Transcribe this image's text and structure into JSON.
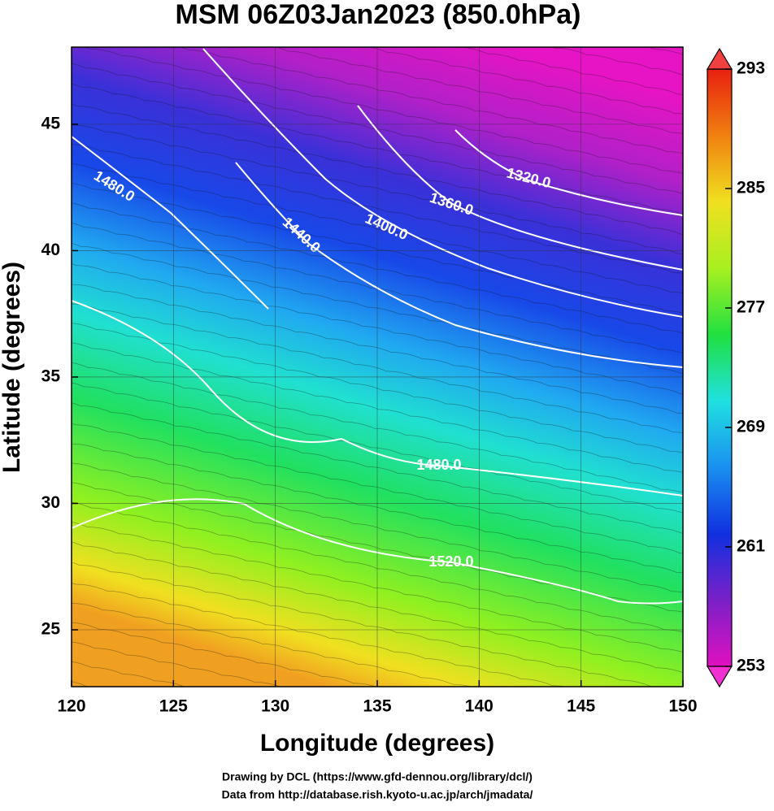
{
  "chart_data": {
    "type": "map",
    "title": "MSM 06Z03Jan2023 (850.0hPa)",
    "x_label": "Longitude (degrees)",
    "y_label": "Latitude  (degrees)",
    "xlim": [
      120,
      150
    ],
    "xticks": [
      120,
      125,
      130,
      135,
      140,
      145,
      150
    ],
    "ylim": [
      22.75,
      48.05
    ],
    "yticks": [
      25,
      30,
      35,
      40,
      45
    ],
    "colorbar": {
      "lim": [
        253,
        293
      ],
      "ticks": [
        253,
        261,
        269,
        277,
        285,
        293
      ],
      "colors": [
        "#e010c0",
        "#7a20c8",
        "#1030e0",
        "#1a90f0",
        "#20e0e0",
        "#20e040",
        "#a8f020",
        "#f0e020",
        "#f08010",
        "#e82010"
      ]
    },
    "contours": [
      {
        "value": 1320,
        "label": "1320.0"
      },
      {
        "value": 1360,
        "label": "1360.0"
      },
      {
        "value": 1400,
        "label": "1400.0"
      },
      {
        "value": 1440,
        "label": "1440.0"
      },
      {
        "value": 1480,
        "label": "1480.0"
      },
      {
        "value": 1480,
        "label": "1480.0"
      },
      {
        "value": 1520,
        "label": "1520.0"
      }
    ],
    "footer": [
      "Drawing by DCL (https://www.gfd-dennou.org/library/dcl/)",
      "Data from http://database.rish.kyoto-u.ac.jp/arch/jmadata/"
    ]
  }
}
